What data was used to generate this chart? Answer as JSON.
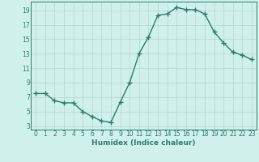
{
  "x": [
    0,
    1,
    2,
    3,
    4,
    5,
    6,
    7,
    8,
    9,
    10,
    11,
    12,
    13,
    14,
    15,
    16,
    17,
    18,
    19,
    20,
    21,
    22,
    23
  ],
  "y": [
    7.5,
    7.5,
    6.5,
    6.2,
    6.2,
    5.0,
    4.3,
    3.7,
    3.5,
    6.3,
    9.0,
    13.0,
    15.3,
    18.3,
    18.5,
    19.4,
    19.1,
    19.1,
    18.5,
    16.0,
    14.5,
    13.2,
    12.8,
    12.2
  ],
  "line_color": "#2d7d6e",
  "marker": "+",
  "marker_size": 4,
  "bg_color": "#cff0eb",
  "grid_color": "#b0d8d2",
  "xlabel": "Humidex (Indice chaleur)",
  "xlim": [
    -0.5,
    23.5
  ],
  "ylim": [
    2.5,
    20.2
  ],
  "yticks": [
    3,
    5,
    7,
    9,
    11,
    13,
    15,
    17,
    19
  ],
  "xticks": [
    0,
    1,
    2,
    3,
    4,
    5,
    6,
    7,
    8,
    9,
    10,
    11,
    12,
    13,
    14,
    15,
    16,
    17,
    18,
    19,
    20,
    21,
    22,
    23
  ],
  "linewidth": 1.0,
  "tick_fontsize": 5.5,
  "xlabel_fontsize": 6.5
}
